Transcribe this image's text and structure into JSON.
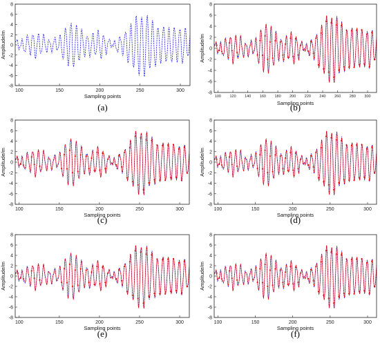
{
  "figure": {
    "colors": {
      "raw": "#1f1fe6",
      "reconstructed": "#e60000",
      "frame": "#222222"
    }
  },
  "chart_data": [
    {
      "panel": "(a)",
      "type": "line",
      "xlabel": "Sampling points",
      "ylabel": "Amplitude/m",
      "xlim": [
        95,
        312
      ],
      "ylim": [
        -8,
        8
      ],
      "xticks": [
        "100",
        "150",
        "200",
        "250",
        "300"
      ],
      "yticks": [
        "-8",
        "-6",
        "-4",
        "-2",
        "0",
        "2",
        "4",
        "6",
        "8"
      ],
      "grid": false,
      "series": [
        {
          "style": "raw",
          "x_range": [
            95,
            312
          ]
        }
      ]
    },
    {
      "panel": "(b)",
      "type": "line",
      "xlabel": "Sampling points",
      "ylabel": "Amplitude/m",
      "xlim": [
        95,
        312
      ],
      "ylim": [
        -8,
        8
      ],
      "xticks": [
        "100",
        "120",
        "140",
        "160",
        "180",
        "200",
        "220",
        "240",
        "260",
        "280",
        "300"
      ],
      "yticks": [
        "-8",
        "-6",
        "-4",
        "-2",
        "0",
        "2",
        "4",
        "6",
        "8"
      ],
      "grid": false,
      "series": [
        {
          "style": "raw",
          "x_range": [
            95,
            312
          ]
        },
        {
          "style": "reconstructed",
          "x_range": [
            95,
            312
          ]
        }
      ]
    },
    {
      "panel": "(c)",
      "type": "line",
      "xlabel": "Sampling points",
      "ylabel": "Amplitude/m",
      "xlim": [
        95,
        312
      ],
      "ylim": [
        -8,
        8
      ],
      "xticks": [
        "100",
        "150",
        "200",
        "250",
        "300"
      ],
      "yticks": [
        "-8",
        "-6",
        "-4",
        "-2",
        "0",
        "2",
        "4",
        "6",
        "8"
      ],
      "grid": false,
      "series": [
        {
          "style": "raw",
          "x_range": [
            95,
            312
          ]
        },
        {
          "style": "reconstructed",
          "x_range": [
            95,
            312
          ]
        }
      ]
    },
    {
      "panel": "(d)",
      "type": "line",
      "xlabel": "Sampling points",
      "ylabel": "Amplitude/m",
      "xlim": [
        95,
        312
      ],
      "ylim": [
        -8,
        8
      ],
      "xticks": [
        "100",
        "150",
        "200",
        "250",
        "300"
      ],
      "yticks": [
        "-8",
        "-6",
        "-4",
        "-2",
        "0",
        "2",
        "4",
        "6",
        "8"
      ],
      "grid": false,
      "series": [
        {
          "style": "raw",
          "x_range": [
            95,
            312
          ]
        },
        {
          "style": "reconstructed",
          "x_range": [
            95,
            312
          ]
        }
      ]
    },
    {
      "panel": "(e)",
      "type": "line",
      "xlabel": "Sampling points",
      "ylabel": "Amplitude/m",
      "xlim": [
        95,
        312
      ],
      "ylim": [
        -8,
        8
      ],
      "xticks": [
        "100",
        "150",
        "200",
        "250",
        "300"
      ],
      "yticks": [
        "-8",
        "-6",
        "-4",
        "-2",
        "0",
        "2",
        "4",
        "6",
        "8"
      ],
      "grid": false,
      "series": [
        {
          "style": "raw",
          "x_range": [
            95,
            312
          ]
        },
        {
          "style": "reconstructed",
          "x_range": [
            95,
            312
          ]
        }
      ]
    },
    {
      "panel": "(f)",
      "type": "line",
      "xlabel": "Sampling points",
      "ylabel": "Amplitude/m",
      "xlim": [
        95,
        312
      ],
      "ylim": [
        -8,
        8
      ],
      "xticks": [
        "100",
        "150",
        "200",
        "250",
        "300"
      ],
      "yticks": [
        "-8",
        "-6",
        "-4",
        "-2",
        "0",
        "2",
        "4",
        "6",
        "8"
      ],
      "grid": false,
      "series": [
        {
          "style": "raw",
          "x_range": [
            95,
            312
          ]
        },
        {
          "style": "reconstructed",
          "x_range": [
            95,
            312
          ]
        }
      ]
    }
  ]
}
